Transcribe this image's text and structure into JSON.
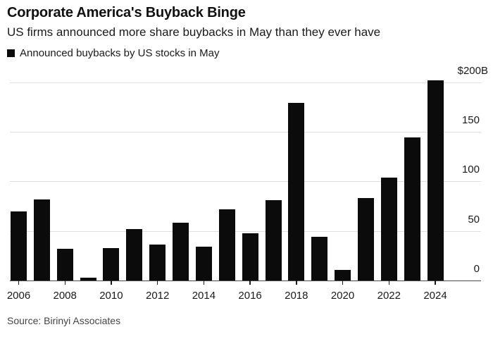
{
  "header": {
    "title": "Corporate America's Buyback Binge",
    "subtitle": "US firms announced more share buybacks in May than they ever have",
    "legend_label": "Announced buybacks by US stocks in May"
  },
  "source": "Source: Birinyi Associates",
  "colors": {
    "background": "#ffffff",
    "bar": "#0b0b0b",
    "gridline": "#dedede",
    "baseline": "#4a4a4a",
    "tick": "#1a1a1a",
    "title_text": "#111111",
    "body_text": "#1a1a1a",
    "axis_label_text": "#1a1a1a",
    "source_text": "#454545"
  },
  "chart_data": {
    "type": "bar",
    "title": "Corporate America's Buyback Binge",
    "subtitle": "US firms announced more share buybacks in May than they ever have",
    "legend": [
      "Announced buybacks by US stocks in May"
    ],
    "legend_position": "top-left",
    "unit": "USD billions",
    "categories": [
      2006,
      2007,
      2008,
      2009,
      2010,
      2011,
      2012,
      2013,
      2014,
      2015,
      2016,
      2017,
      2018,
      2019,
      2020,
      2021,
      2022,
      2023,
      2024
    ],
    "values": [
      70,
      82,
      32,
      3,
      33,
      52,
      36,
      58,
      34,
      72,
      48,
      81,
      179,
      44,
      11,
      83,
      104,
      144,
      202
    ],
    "xlabel": "",
    "ylabel": "",
    "ylim": [
      0,
      200
    ],
    "yticks": [
      0,
      50,
      100,
      150,
      200
    ],
    "ytick_labels": [
      "0",
      "50",
      "100",
      "150",
      "$200B"
    ],
    "xtick_labels": [
      "2006",
      "2008",
      "2010",
      "2012",
      "2014",
      "2016",
      "2018",
      "2020",
      "2022",
      "2024"
    ],
    "grid": "horizontal",
    "y_axis_side": "right"
  }
}
